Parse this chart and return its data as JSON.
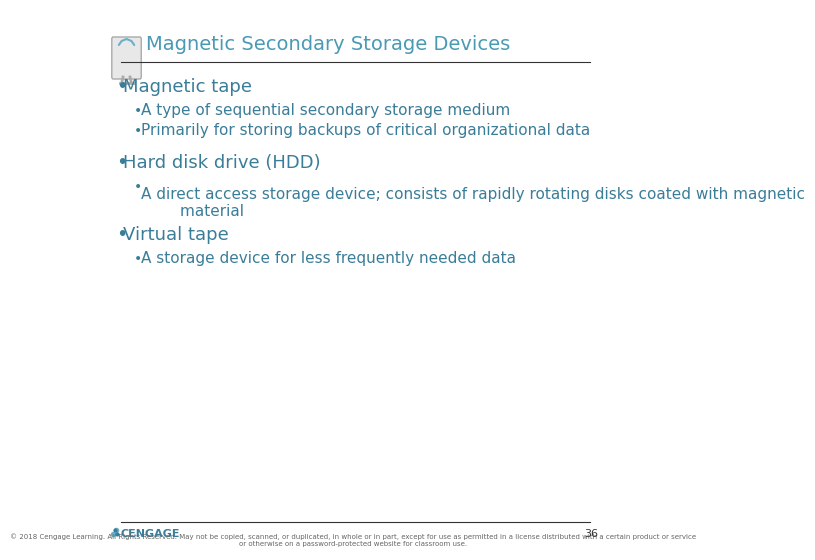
{
  "title": "Magnetic Secondary Storage Devices",
  "title_color": "#4a9ab5",
  "bg_color": "#ffffff",
  "text_color": "#3a7d99",
  "footer_color": "#555555",
  "bullet1": "Magnetic tape",
  "bullet1_subs": [
    "A type of sequential secondary storage medium",
    "Primarily for storing backups of critical organizational data"
  ],
  "bullet2": "Hard disk drive (HDD)",
  "bullet2_subs": [
    "A direct access storage device; consists of rapidly rotating disks coated with magnetic\n        material"
  ],
  "bullet3": "Virtual tape",
  "bullet3_subs": [
    "A storage device for less frequently needed data"
  ],
  "footer_text": "© 2018 Cengage Learning. All Rights Reserved. May not be copied, scanned, or duplicated, in whole or in part, except for use as permitted in a license distributed with a certain product or service\nor otherwise on a password-protected website for classroom use.",
  "page_number": "36",
  "cengage_text": "CENGAGE",
  "title_fontsize": 14,
  "bullet_fontsize": 13,
  "sub_fontsize": 11,
  "footer_fontsize": 5
}
